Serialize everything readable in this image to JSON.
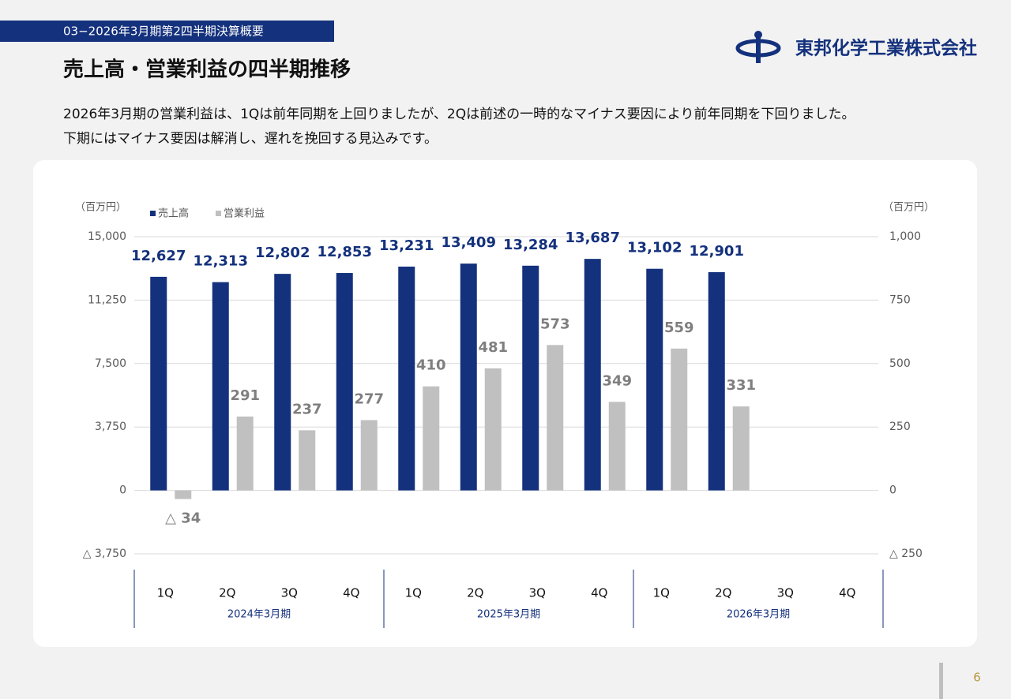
{
  "header": {
    "section": "03−2026年3月期第2四半期決算概要",
    "title": "売上高・営業利益の四半期推移",
    "company": "東邦化学工業株式会社",
    "body": [
      "2026年3月期の営業利益は、1Qは前年同期を上回りましたが、2Qは前述の一時的なマイナス要因により前年同期を下回りました。",
      "下期にはマイナス要因は解消し、遅れを挽回する見込みです。"
    ],
    "page": "6"
  },
  "chart_data": {
    "type": "bar",
    "y_unit": "（百万円）",
    "y2_unit": "（百万円）",
    "categories": [
      "1Q",
      "2Q",
      "3Q",
      "4Q",
      "1Q",
      "2Q",
      "3Q",
      "4Q",
      "1Q",
      "2Q",
      "3Q",
      "4Q"
    ],
    "category_groups": [
      "2024年3月期",
      "2025年3月期",
      "2026年3月期"
    ],
    "series": [
      {
        "name": "売上高",
        "color": "#14317d",
        "values": [
          12627,
          12313,
          12802,
          12853,
          13231,
          13409,
          13284,
          13687,
          13102,
          12901,
          null,
          null
        ],
        "value_labels": [
          "12,627",
          "12,313",
          "12,802",
          "12,853",
          "13,231",
          "13,409",
          "13,284",
          "13,687",
          "13,102",
          "12,901",
          null,
          null
        ]
      },
      {
        "name": "営業利益",
        "color": "#c0c0c0",
        "axis": "y2",
        "values": [
          -34,
          291,
          237,
          277,
          410,
          481,
          573,
          349,
          559,
          331,
          null,
          null
        ],
        "value_labels": [
          "△ 34",
          "291",
          "237",
          "277",
          "410",
          "481",
          "573",
          "349",
          "559",
          "331",
          null,
          null
        ]
      }
    ],
    "ylim": [
      -3750,
      15000
    ],
    "yticks": [
      {
        "value": -3750,
        "label": "△ 3,750"
      },
      0,
      {
        "value": 3750,
        "label": "3,750"
      },
      {
        "value": 7500,
        "label": "7,500"
      },
      {
        "value": 11250,
        "label": "11,250"
      },
      {
        "value": 15000,
        "label": "15,000"
      }
    ],
    "y2lim": [
      -250,
      1000
    ],
    "y2ticks": [
      {
        "value": -250,
        "label": "△ 250"
      },
      0,
      250,
      500,
      750,
      {
        "value": 1000,
        "label": "1,000"
      }
    ],
    "grid": true,
    "legend": "top-left"
  }
}
